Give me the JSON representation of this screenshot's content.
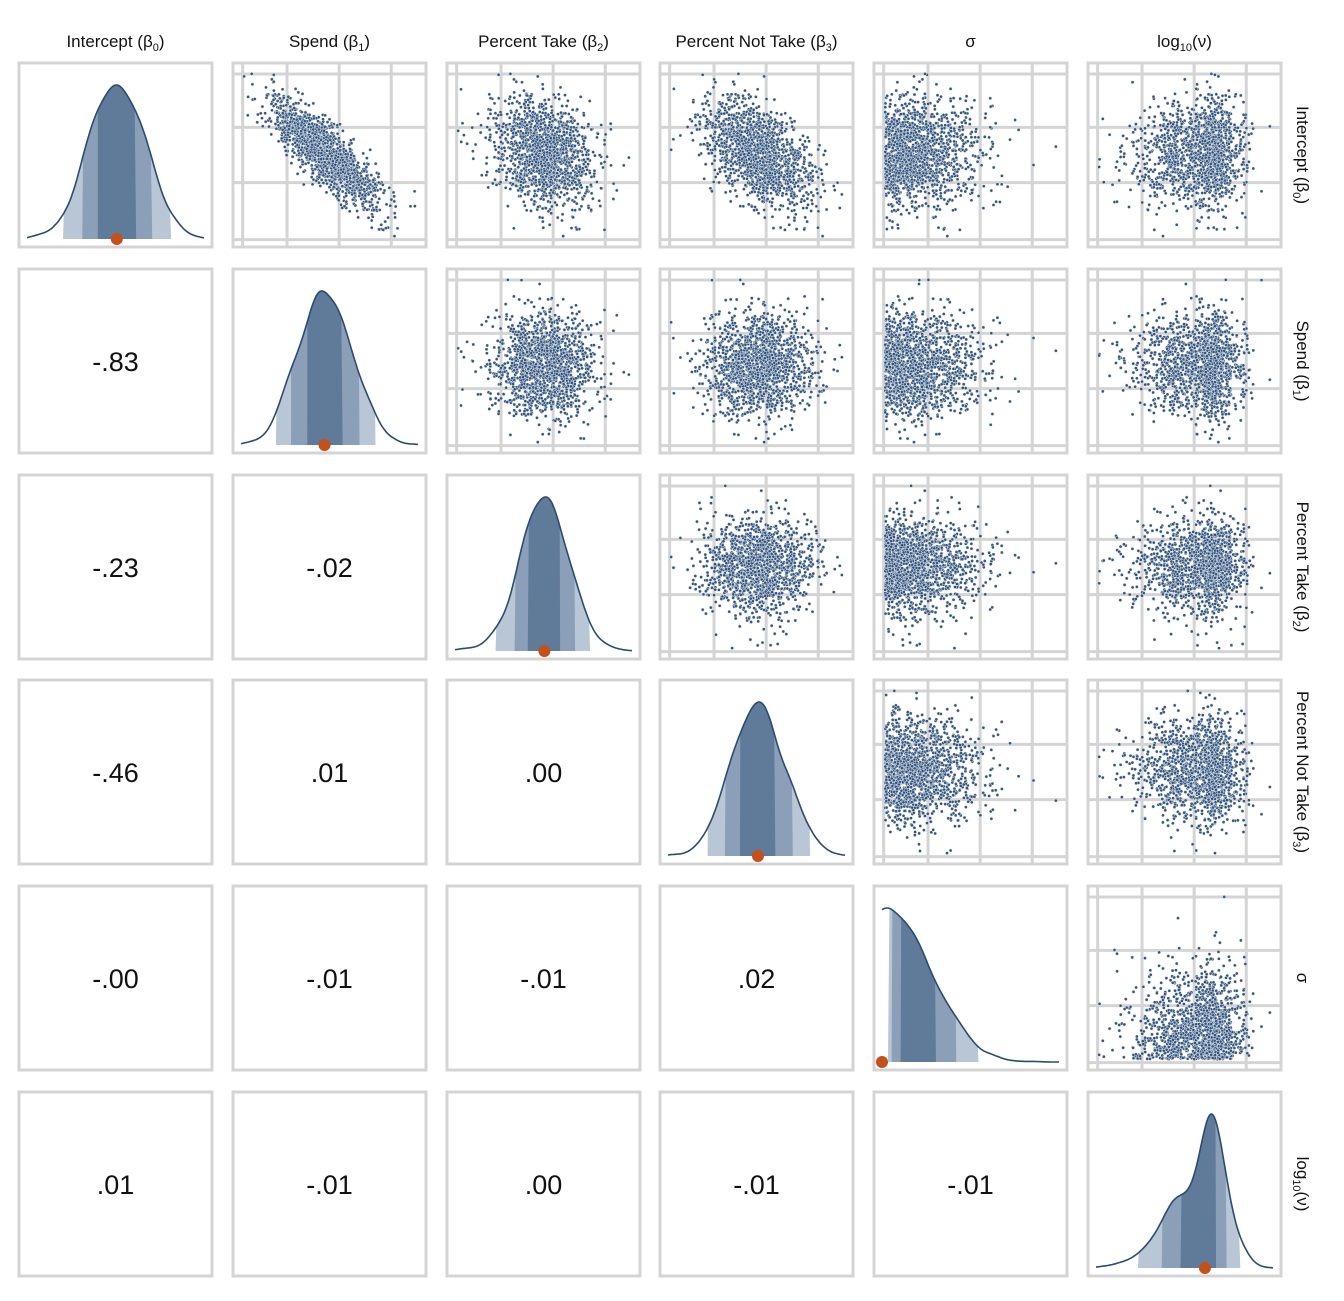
{
  "chart_data": {
    "type": "scatter",
    "title": "",
    "subtype": "pairs-plot",
    "variables": [
      {
        "label": "Intercept (β",
        "sub": "0",
        "suffix": ")",
        "transform": "none",
        "estimate": "median"
      },
      {
        "label": "Spend (β",
        "sub": "1",
        "suffix": ")",
        "transform": "none",
        "estimate": "median"
      },
      {
        "label": "Percent Take (β",
        "sub": "2",
        "suffix": ")",
        "transform": "none",
        "estimate": "median"
      },
      {
        "label": "Percent Not Take (β",
        "sub": "3",
        "suffix": ")",
        "transform": "none",
        "estimate": "median"
      },
      {
        "label": "σ",
        "sub": "",
        "suffix": "",
        "transform": "abs",
        "estimate": "mode"
      },
      {
        "label": "log",
        "sub": "10",
        "suffix": "(ν)",
        "transform": "skewleft",
        "estimate": "median"
      }
    ],
    "correlations": [
      {
        "row": 1,
        "col": 0,
        "value": -0.83,
        "label": "-.83"
      },
      {
        "row": 2,
        "col": 0,
        "value": -0.23,
        "label": "-.23"
      },
      {
        "row": 2,
        "col": 1,
        "value": -0.02,
        "label": "-.02"
      },
      {
        "row": 3,
        "col": 0,
        "value": -0.46,
        "label": "-.46"
      },
      {
        "row": 3,
        "col": 1,
        "value": 0.01,
        "label": ".01"
      },
      {
        "row": 3,
        "col": 2,
        "value": 0.0,
        "label": ".00"
      },
      {
        "row": 4,
        "col": 0,
        "value": -0.0,
        "label": "-.00"
      },
      {
        "row": 4,
        "col": 1,
        "value": -0.01,
        "label": "-.01"
      },
      {
        "row": 4,
        "col": 2,
        "value": -0.01,
        "label": "-.01"
      },
      {
        "row": 4,
        "col": 3,
        "value": 0.02,
        "label": ".02"
      },
      {
        "row": 5,
        "col": 0,
        "value": 0.01,
        "label": ".01"
      },
      {
        "row": 5,
        "col": 1,
        "value": -0.01,
        "label": "-.01"
      },
      {
        "row": 5,
        "col": 2,
        "value": 0.0,
        "label": ".00"
      },
      {
        "row": 5,
        "col": 3,
        "value": -0.01,
        "label": "-.01"
      },
      {
        "row": 5,
        "col": 4,
        "value": -0.01,
        "label": "-.01"
      }
    ],
    "intervals": [
      0.5,
      0.8,
      0.95
    ],
    "colors": {
      "density_fill": "#5f7b99",
      "interval_80": "#8b9fb8",
      "interval_95": "#b9c6d6",
      "density_line": "#2b4b70",
      "point": "#34557e",
      "estimate": "#c4501a",
      "frame": "#d4d4d4"
    }
  }
}
